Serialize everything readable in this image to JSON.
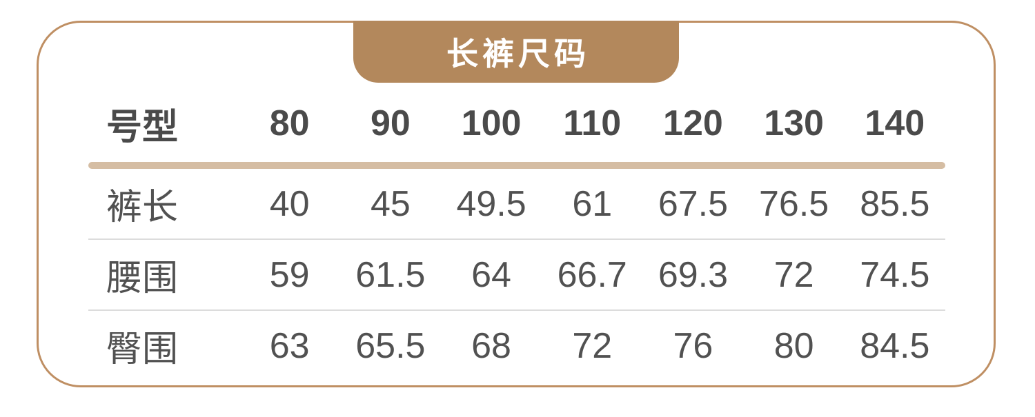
{
  "card": {
    "title_tab": {
      "label": "长裤尺码",
      "bg_color": "#b3885c",
      "text_color": "#ffffff"
    },
    "border_color": "#bf8f63",
    "table": {
      "header": {
        "label": "号型",
        "sizes": [
          "80",
          "90",
          "100",
          "110",
          "120",
          "130",
          "140"
        ]
      },
      "rows": [
        {
          "label": "裤长",
          "values": [
            "40",
            "45",
            "49.5",
            "61",
            "67.5",
            "76.5",
            "85.5"
          ]
        },
        {
          "label": "腰围",
          "values": [
            "59",
            "61.5",
            "64",
            "66.7",
            "69.3",
            "72",
            "74.5"
          ]
        },
        {
          "label": "臀围",
          "values": [
            "63",
            "65.5",
            "68",
            "72",
            "76",
            "80",
            "84.5"
          ]
        }
      ],
      "colors": {
        "header_text": "#4a4a4a",
        "body_text": "#515151",
        "thick_divider": "#d5bda3",
        "thin_divider": "#dcdcdc"
      }
    }
  },
  "chart_data": {
    "type": "table",
    "title": "长裤尺码",
    "columns": [
      "号型",
      "80",
      "90",
      "100",
      "110",
      "120",
      "130",
      "140"
    ],
    "rows": [
      [
        "裤长",
        40,
        45,
        49.5,
        61,
        67.5,
        76.5,
        85.5
      ],
      [
        "腰围",
        59,
        61.5,
        64,
        66.7,
        69.3,
        72,
        74.5
      ],
      [
        "臀围",
        63,
        65.5,
        68,
        72,
        76,
        80,
        84.5
      ]
    ]
  }
}
